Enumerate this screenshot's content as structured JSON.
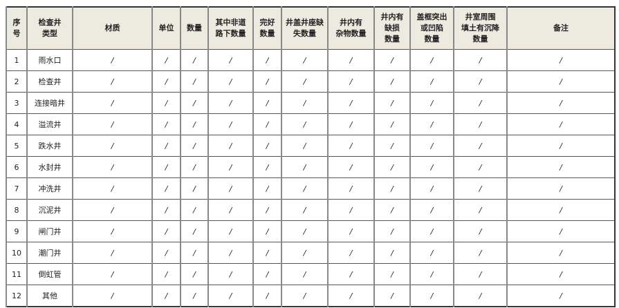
{
  "headers": [
    "序\n号",
    "检查井\n类型",
    "材质",
    "单位",
    "数量",
    "其中非道\n路下数量",
    "完好\n数量",
    "井盖井座缺\n失数量",
    "井内有\n杂物数量",
    "井内有\n缺损\n数量",
    "盖框突出\n或凹陷\n数量",
    "井室周围\n填土有沉降\n数量",
    "备注"
  ],
  "rows": [
    [
      "1",
      "雨水口"
    ],
    [
      "2",
      "检查井"
    ],
    [
      "3",
      "连接暗井"
    ],
    [
      "4",
      "溢流井"
    ],
    [
      "5",
      "跌水井"
    ],
    [
      "6",
      "水封井"
    ],
    [
      "7",
      "冲洗井"
    ],
    [
      "8",
      "沉泥井"
    ],
    [
      "9",
      "闸门井"
    ],
    [
      "10",
      "潮门井"
    ],
    [
      "11",
      "倒虹管"
    ],
    [
      "12",
      "其他"
    ]
  ],
  "empty_value": "/",
  "colors": {
    "header_bg": "#edebe0",
    "border": "#555555"
  }
}
